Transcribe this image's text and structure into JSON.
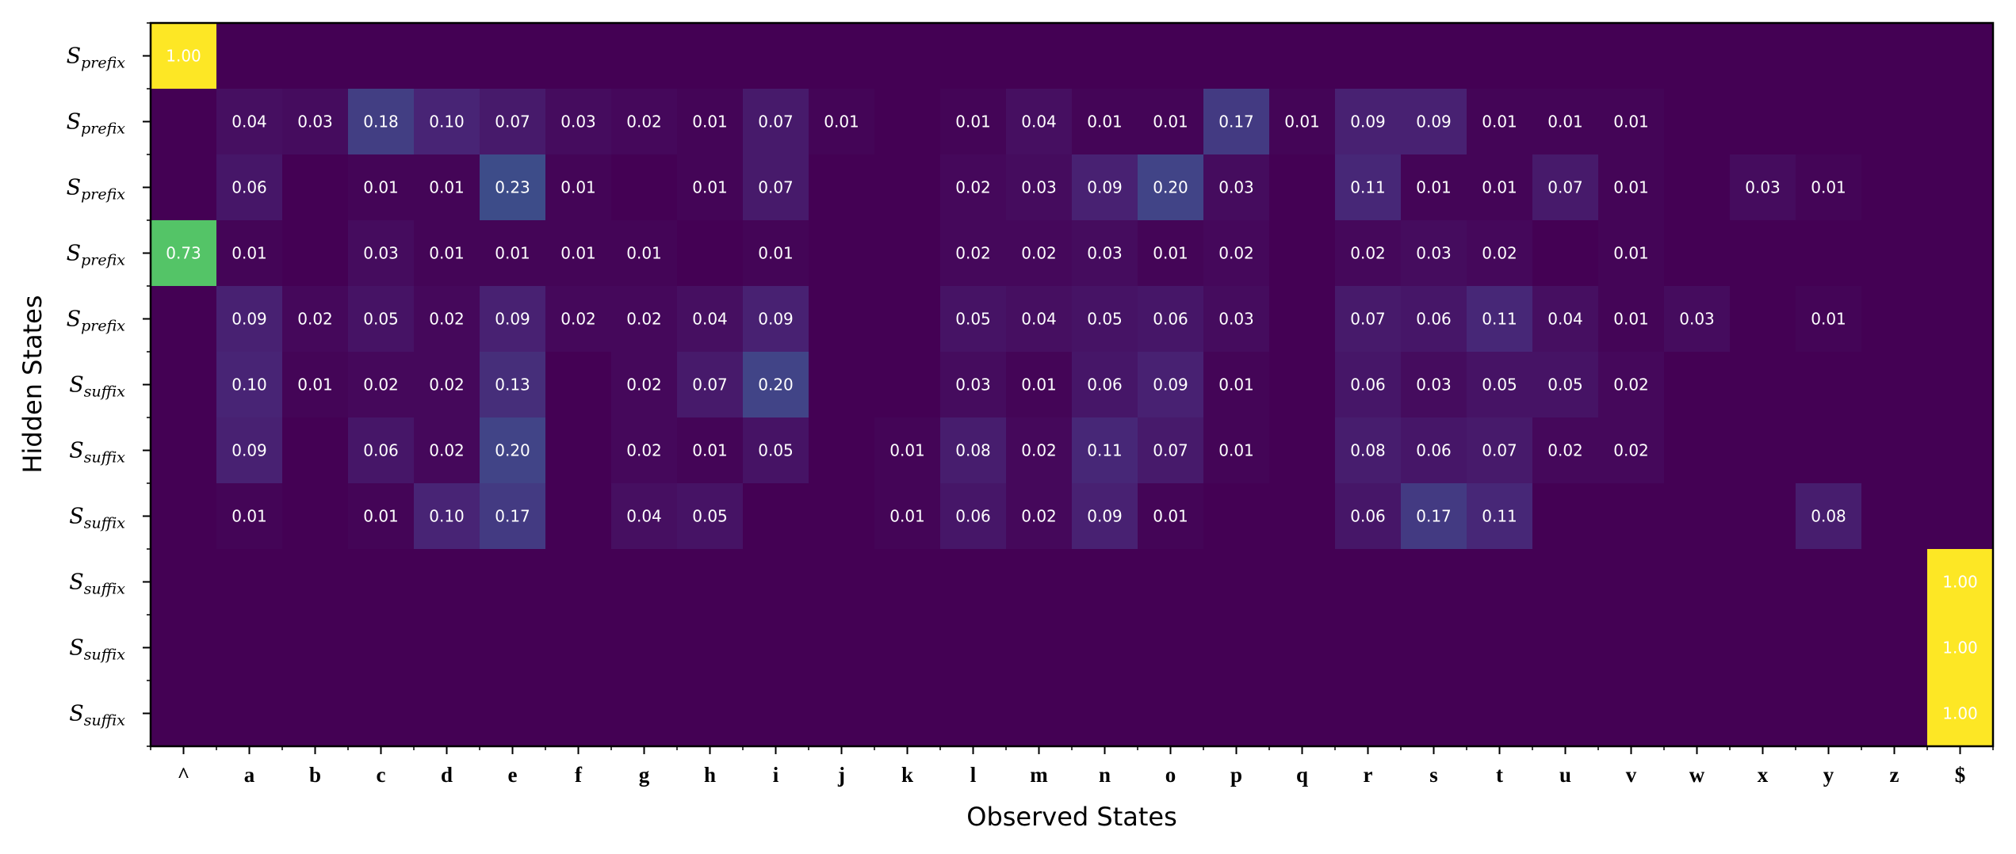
{
  "chart_data": {
    "type": "heatmap",
    "title": "",
    "xlabel": "Observed States",
    "ylabel": "Hidden States",
    "x_categories": [
      "^",
      "a",
      "b",
      "c",
      "d",
      "e",
      "f",
      "g",
      "h",
      "i",
      "j",
      "k",
      "l",
      "m",
      "n",
      "o",
      "p",
      "q",
      "r",
      "s",
      "t",
      "u",
      "v",
      "w",
      "x",
      "y",
      "z",
      "$"
    ],
    "y_categories": [
      {
        "base": "S",
        "sub": "prefix"
      },
      {
        "base": "S",
        "sub": "prefix"
      },
      {
        "base": "S",
        "sub": "prefix"
      },
      {
        "base": "S",
        "sub": "prefix"
      },
      {
        "base": "S",
        "sub": "prefix"
      },
      {
        "base": "S",
        "sub": "suffix"
      },
      {
        "base": "S",
        "sub": "suffix"
      },
      {
        "base": "S",
        "sub": "suffix"
      },
      {
        "base": "S",
        "sub": "suffix"
      },
      {
        "base": "S",
        "sub": "suffix"
      },
      {
        "base": "S",
        "sub": "suffix"
      }
    ],
    "colormap": "viridis",
    "value_range": [
      0,
      1
    ],
    "cells": [
      {
        "row": 0,
        "col": 0,
        "value": 1.0,
        "label": "1.00"
      },
      {
        "row": 1,
        "col": 1,
        "value": 0.04,
        "label": "0.04"
      },
      {
        "row": 1,
        "col": 2,
        "value": 0.03,
        "label": "0.03"
      },
      {
        "row": 1,
        "col": 3,
        "value": 0.18,
        "label": "0.18"
      },
      {
        "row": 1,
        "col": 4,
        "value": 0.1,
        "label": "0.10"
      },
      {
        "row": 1,
        "col": 5,
        "value": 0.07,
        "label": "0.07"
      },
      {
        "row": 1,
        "col": 6,
        "value": 0.03,
        "label": "0.03"
      },
      {
        "row": 1,
        "col": 7,
        "value": 0.02,
        "label": "0.02"
      },
      {
        "row": 1,
        "col": 8,
        "value": 0.01,
        "label": "0.01"
      },
      {
        "row": 1,
        "col": 9,
        "value": 0.07,
        "label": "0.07"
      },
      {
        "row": 1,
        "col": 10,
        "value": 0.01,
        "label": "0.01"
      },
      {
        "row": 1,
        "col": 12,
        "value": 0.01,
        "label": "0.01"
      },
      {
        "row": 1,
        "col": 13,
        "value": 0.04,
        "label": "0.04"
      },
      {
        "row": 1,
        "col": 14,
        "value": 0.01,
        "label": "0.01"
      },
      {
        "row": 1,
        "col": 15,
        "value": 0.01,
        "label": "0.01"
      },
      {
        "row": 1,
        "col": 16,
        "value": 0.17,
        "label": "0.17"
      },
      {
        "row": 1,
        "col": 17,
        "value": 0.01,
        "label": "0.01"
      },
      {
        "row": 1,
        "col": 18,
        "value": 0.09,
        "label": "0.09"
      },
      {
        "row": 1,
        "col": 19,
        "value": 0.09,
        "label": "0.09"
      },
      {
        "row": 1,
        "col": 20,
        "value": 0.01,
        "label": "0.01"
      },
      {
        "row": 1,
        "col": 21,
        "value": 0.01,
        "label": "0.01"
      },
      {
        "row": 1,
        "col": 22,
        "value": 0.01,
        "label": "0.01"
      },
      {
        "row": 2,
        "col": 1,
        "value": 0.06,
        "label": "0.06"
      },
      {
        "row": 2,
        "col": 3,
        "value": 0.01,
        "label": "0.01"
      },
      {
        "row": 2,
        "col": 4,
        "value": 0.01,
        "label": "0.01"
      },
      {
        "row": 2,
        "col": 5,
        "value": 0.23,
        "label": "0.23"
      },
      {
        "row": 2,
        "col": 6,
        "value": 0.01,
        "label": "0.01"
      },
      {
        "row": 2,
        "col": 8,
        "value": 0.01,
        "label": "0.01"
      },
      {
        "row": 2,
        "col": 9,
        "value": 0.07,
        "label": "0.07"
      },
      {
        "row": 2,
        "col": 12,
        "value": 0.02,
        "label": "0.02"
      },
      {
        "row": 2,
        "col": 13,
        "value": 0.03,
        "label": "0.03"
      },
      {
        "row": 2,
        "col": 14,
        "value": 0.09,
        "label": "0.09"
      },
      {
        "row": 2,
        "col": 15,
        "value": 0.2,
        "label": "0.20"
      },
      {
        "row": 2,
        "col": 16,
        "value": 0.03,
        "label": "0.03"
      },
      {
        "row": 2,
        "col": 18,
        "value": 0.11,
        "label": "0.11"
      },
      {
        "row": 2,
        "col": 19,
        "value": 0.01,
        "label": "0.01"
      },
      {
        "row": 2,
        "col": 20,
        "value": 0.01,
        "label": "0.01"
      },
      {
        "row": 2,
        "col": 21,
        "value": 0.07,
        "label": "0.07"
      },
      {
        "row": 2,
        "col": 22,
        "value": 0.01,
        "label": "0.01"
      },
      {
        "row": 2,
        "col": 24,
        "value": 0.03,
        "label": "0.03"
      },
      {
        "row": 2,
        "col": 25,
        "value": 0.01,
        "label": "0.01"
      },
      {
        "row": 3,
        "col": 0,
        "value": 0.73,
        "label": "0.73"
      },
      {
        "row": 3,
        "col": 1,
        "value": 0.01,
        "label": "0.01"
      },
      {
        "row": 3,
        "col": 3,
        "value": 0.03,
        "label": "0.03"
      },
      {
        "row": 3,
        "col": 4,
        "value": 0.01,
        "label": "0.01"
      },
      {
        "row": 3,
        "col": 5,
        "value": 0.01,
        "label": "0.01"
      },
      {
        "row": 3,
        "col": 6,
        "value": 0.01,
        "label": "0.01"
      },
      {
        "row": 3,
        "col": 7,
        "value": 0.01,
        "label": "0.01"
      },
      {
        "row": 3,
        "col": 9,
        "value": 0.01,
        "label": "0.01"
      },
      {
        "row": 3,
        "col": 12,
        "value": 0.02,
        "label": "0.02"
      },
      {
        "row": 3,
        "col": 13,
        "value": 0.02,
        "label": "0.02"
      },
      {
        "row": 3,
        "col": 14,
        "value": 0.03,
        "label": "0.03"
      },
      {
        "row": 3,
        "col": 15,
        "value": 0.01,
        "label": "0.01"
      },
      {
        "row": 3,
        "col": 16,
        "value": 0.02,
        "label": "0.02"
      },
      {
        "row": 3,
        "col": 18,
        "value": 0.02,
        "label": "0.02"
      },
      {
        "row": 3,
        "col": 19,
        "value": 0.03,
        "label": "0.03"
      },
      {
        "row": 3,
        "col": 20,
        "value": 0.02,
        "label": "0.02"
      },
      {
        "row": 3,
        "col": 22,
        "value": 0.01,
        "label": "0.01"
      },
      {
        "row": 4,
        "col": 1,
        "value": 0.09,
        "label": "0.09"
      },
      {
        "row": 4,
        "col": 2,
        "value": 0.02,
        "label": "0.02"
      },
      {
        "row": 4,
        "col": 3,
        "value": 0.05,
        "label": "0.05"
      },
      {
        "row": 4,
        "col": 4,
        "value": 0.02,
        "label": "0.02"
      },
      {
        "row": 4,
        "col": 5,
        "value": 0.09,
        "label": "0.09"
      },
      {
        "row": 4,
        "col": 6,
        "value": 0.02,
        "label": "0.02"
      },
      {
        "row": 4,
        "col": 7,
        "value": 0.02,
        "label": "0.02"
      },
      {
        "row": 4,
        "col": 8,
        "value": 0.04,
        "label": "0.04"
      },
      {
        "row": 4,
        "col": 9,
        "value": 0.09,
        "label": "0.09"
      },
      {
        "row": 4,
        "col": 12,
        "value": 0.05,
        "label": "0.05"
      },
      {
        "row": 4,
        "col": 13,
        "value": 0.04,
        "label": "0.04"
      },
      {
        "row": 4,
        "col": 14,
        "value": 0.05,
        "label": "0.05"
      },
      {
        "row": 4,
        "col": 15,
        "value": 0.06,
        "label": "0.06"
      },
      {
        "row": 4,
        "col": 16,
        "value": 0.03,
        "label": "0.03"
      },
      {
        "row": 4,
        "col": 18,
        "value": 0.07,
        "label": "0.07"
      },
      {
        "row": 4,
        "col": 19,
        "value": 0.06,
        "label": "0.06"
      },
      {
        "row": 4,
        "col": 20,
        "value": 0.11,
        "label": "0.11"
      },
      {
        "row": 4,
        "col": 21,
        "value": 0.04,
        "label": "0.04"
      },
      {
        "row": 4,
        "col": 22,
        "value": 0.01,
        "label": "0.01"
      },
      {
        "row": 4,
        "col": 23,
        "value": 0.03,
        "label": "0.03"
      },
      {
        "row": 4,
        "col": 25,
        "value": 0.01,
        "label": "0.01"
      },
      {
        "row": 5,
        "col": 1,
        "value": 0.1,
        "label": "0.10"
      },
      {
        "row": 5,
        "col": 2,
        "value": 0.01,
        "label": "0.01"
      },
      {
        "row": 5,
        "col": 3,
        "value": 0.02,
        "label": "0.02"
      },
      {
        "row": 5,
        "col": 4,
        "value": 0.02,
        "label": "0.02"
      },
      {
        "row": 5,
        "col": 5,
        "value": 0.13,
        "label": "0.13"
      },
      {
        "row": 5,
        "col": 7,
        "value": 0.02,
        "label": "0.02"
      },
      {
        "row": 5,
        "col": 8,
        "value": 0.07,
        "label": "0.07"
      },
      {
        "row": 5,
        "col": 9,
        "value": 0.2,
        "label": "0.20"
      },
      {
        "row": 5,
        "col": 12,
        "value": 0.03,
        "label": "0.03"
      },
      {
        "row": 5,
        "col": 13,
        "value": 0.01,
        "label": "0.01"
      },
      {
        "row": 5,
        "col": 14,
        "value": 0.06,
        "label": "0.06"
      },
      {
        "row": 5,
        "col": 15,
        "value": 0.09,
        "label": "0.09"
      },
      {
        "row": 5,
        "col": 16,
        "value": 0.01,
        "label": "0.01"
      },
      {
        "row": 5,
        "col": 18,
        "value": 0.06,
        "label": "0.06"
      },
      {
        "row": 5,
        "col": 19,
        "value": 0.03,
        "label": "0.03"
      },
      {
        "row": 5,
        "col": 20,
        "value": 0.05,
        "label": "0.05"
      },
      {
        "row": 5,
        "col": 21,
        "value": 0.05,
        "label": "0.05"
      },
      {
        "row": 5,
        "col": 22,
        "value": 0.02,
        "label": "0.02"
      },
      {
        "row": 6,
        "col": 1,
        "value": 0.09,
        "label": "0.09"
      },
      {
        "row": 6,
        "col": 3,
        "value": 0.06,
        "label": "0.06"
      },
      {
        "row": 6,
        "col": 4,
        "value": 0.02,
        "label": "0.02"
      },
      {
        "row": 6,
        "col": 5,
        "value": 0.2,
        "label": "0.20"
      },
      {
        "row": 6,
        "col": 7,
        "value": 0.02,
        "label": "0.02"
      },
      {
        "row": 6,
        "col": 8,
        "value": 0.01,
        "label": "0.01"
      },
      {
        "row": 6,
        "col": 9,
        "value": 0.05,
        "label": "0.05"
      },
      {
        "row": 6,
        "col": 11,
        "value": 0.01,
        "label": "0.01"
      },
      {
        "row": 6,
        "col": 12,
        "value": 0.08,
        "label": "0.08"
      },
      {
        "row": 6,
        "col": 13,
        "value": 0.02,
        "label": "0.02"
      },
      {
        "row": 6,
        "col": 14,
        "value": 0.11,
        "label": "0.11"
      },
      {
        "row": 6,
        "col": 15,
        "value": 0.07,
        "label": "0.07"
      },
      {
        "row": 6,
        "col": 16,
        "value": 0.01,
        "label": "0.01"
      },
      {
        "row": 6,
        "col": 18,
        "value": 0.08,
        "label": "0.08"
      },
      {
        "row": 6,
        "col": 19,
        "value": 0.06,
        "label": "0.06"
      },
      {
        "row": 6,
        "col": 20,
        "value": 0.07,
        "label": "0.07"
      },
      {
        "row": 6,
        "col": 21,
        "value": 0.02,
        "label": "0.02"
      },
      {
        "row": 6,
        "col": 22,
        "value": 0.02,
        "label": "0.02"
      },
      {
        "row": 7,
        "col": 1,
        "value": 0.01,
        "label": "0.01"
      },
      {
        "row": 7,
        "col": 3,
        "value": 0.01,
        "label": "0.01"
      },
      {
        "row": 7,
        "col": 4,
        "value": 0.1,
        "label": "0.10"
      },
      {
        "row": 7,
        "col": 5,
        "value": 0.17,
        "label": "0.17"
      },
      {
        "row": 7,
        "col": 7,
        "value": 0.04,
        "label": "0.04"
      },
      {
        "row": 7,
        "col": 8,
        "value": 0.05,
        "label": "0.05"
      },
      {
        "row": 7,
        "col": 11,
        "value": 0.01,
        "label": "0.01"
      },
      {
        "row": 7,
        "col": 12,
        "value": 0.06,
        "label": "0.06"
      },
      {
        "row": 7,
        "col": 13,
        "value": 0.02,
        "label": "0.02"
      },
      {
        "row": 7,
        "col": 14,
        "value": 0.09,
        "label": "0.09"
      },
      {
        "row": 7,
        "col": 15,
        "value": 0.01,
        "label": "0.01"
      },
      {
        "row": 7,
        "col": 18,
        "value": 0.06,
        "label": "0.06"
      },
      {
        "row": 7,
        "col": 19,
        "value": 0.17,
        "label": "0.17"
      },
      {
        "row": 7,
        "col": 20,
        "value": 0.11,
        "label": "0.11"
      },
      {
        "row": 7,
        "col": 25,
        "value": 0.08,
        "label": "0.08"
      },
      {
        "row": 8,
        "col": 27,
        "value": 1.0,
        "label": "1.00"
      },
      {
        "row": 9,
        "col": 27,
        "value": 1.0,
        "label": "1.00"
      },
      {
        "row": 10,
        "col": 27,
        "value": 1.0,
        "label": "1.00"
      }
    ],
    "grid": false,
    "legend": "none"
  }
}
